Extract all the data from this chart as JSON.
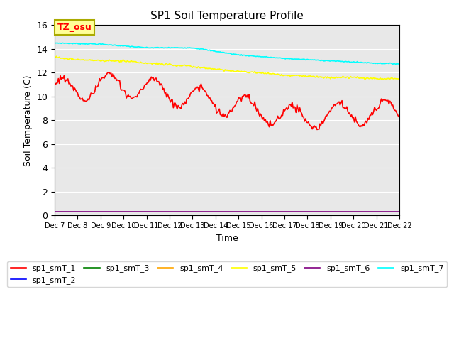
{
  "title": "SP1 Soil Temperature Profile",
  "xlabel": "Time",
  "ylabel": "Soil Temperature (C)",
  "annotation_text": "TZ_osu",
  "annotation_color": "red",
  "annotation_bg": "#ffff99",
  "annotation_border": "#aaaa00",
  "ylim": [
    0,
    16
  ],
  "xlim": [
    0,
    360
  ],
  "x_ticks": [
    0,
    24,
    48,
    72,
    96,
    120,
    144,
    168,
    192,
    216,
    240,
    264,
    288,
    312,
    336,
    360
  ],
  "x_tick_labels": [
    "Dec 7",
    "Dec 8",
    "Dec 9",
    "Dec 10",
    "Dec 11",
    "Dec 12",
    "Dec 13",
    "Dec 14",
    "Dec 15",
    "Dec 16",
    "Dec 17",
    "Dec 18",
    "Dec 19",
    "Dec 20",
    "Dec 21",
    "Dec 22"
  ],
  "bg_color": "#e8e8e8",
  "fig_color": "#ffffff",
  "series": {
    "sp1_smT_1": {
      "color": "red",
      "lw": 1.2
    },
    "sp1_smT_2": {
      "color": "blue",
      "lw": 1.2
    },
    "sp1_smT_3": {
      "color": "green",
      "lw": 1.2
    },
    "sp1_smT_4": {
      "color": "orange",
      "lw": 1.2
    },
    "sp1_smT_5": {
      "color": "yellow",
      "lw": 1.2
    },
    "sp1_smT_6": {
      "color": "purple",
      "lw": 1.2
    },
    "sp1_smT_7": {
      "color": "cyan",
      "lw": 1.2
    }
  }
}
